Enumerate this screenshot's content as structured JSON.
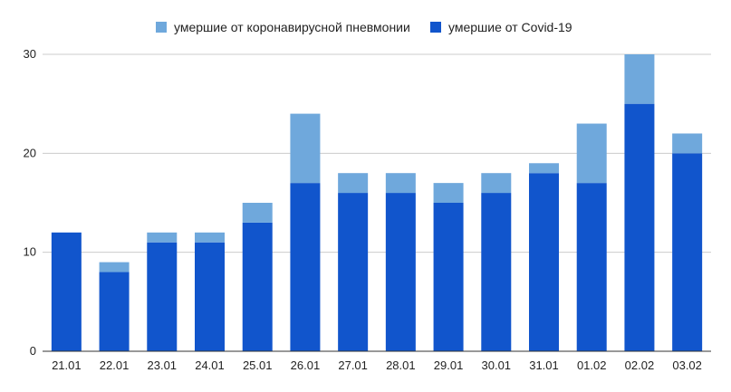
{
  "chart_data": {
    "type": "bar",
    "stacked": true,
    "categories": [
      "21.01",
      "22.01",
      "23.01",
      "24.01",
      "25.01",
      "26.01",
      "27.01",
      "28.01",
      "29.01",
      "30.01",
      "31.01",
      "01.02",
      "02.02",
      "03.02"
    ],
    "series": [
      {
        "name": "умершие от Covid-19",
        "color": "#1155cc",
        "values": [
          12,
          8,
          11,
          11,
          13,
          17,
          16,
          16,
          15,
          16,
          18,
          17,
          25,
          20
        ]
      },
      {
        "name": "умершие от коронавирусной пневмонии",
        "color": "#6fa8dc",
        "values": [
          0,
          1,
          1,
          1,
          2,
          7,
          2,
          2,
          2,
          2,
          1,
          6,
          5,
          2
        ]
      }
    ],
    "legend": {
      "position": "top-center",
      "items": [
        {
          "label": "умершие от коронавирусной пневмонии",
          "color": "#6fa8dc"
        },
        {
          "label": "умершие от Covid-19",
          "color": "#1155cc"
        }
      ]
    },
    "ylim": [
      0,
      30
    ],
    "yticks": [
      "0",
      "10",
      "20",
      "30"
    ],
    "grid": true,
    "title": "",
    "xlabel": "",
    "ylabel": ""
  }
}
